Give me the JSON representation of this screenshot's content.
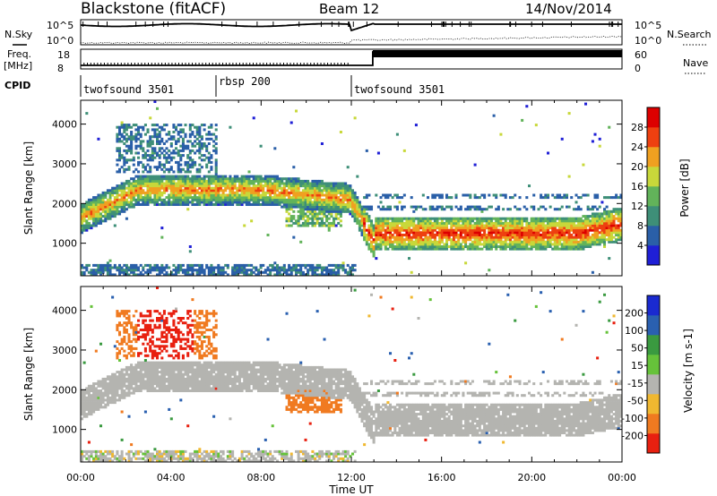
{
  "header": {
    "title": "Blackstone (fitACF)",
    "beam": "Beam 12",
    "date": "14/Nov/2014"
  },
  "summary": {
    "nsky_label": "N.Sky",
    "nsky_ticks": [
      "10^5",
      "10^0"
    ],
    "nsearch_label": "N.Search",
    "nsearch_ticks": [
      "10^5",
      "10^0"
    ],
    "freq_label": "Freq.",
    "freq_unit": "[MHz]",
    "freq_ticks": [
      "18",
      "8"
    ],
    "nave_label": "Nave",
    "nave_ticks": [
      "60",
      "0"
    ],
    "cpid_label": "CPID",
    "cpid_segments": [
      {
        "label": "twofsound 3501",
        "start": 0,
        "end": 6
      },
      {
        "label": "rbsp 200",
        "start": 6,
        "end": 12
      },
      {
        "label": "twofsound 3501",
        "start": 12,
        "end": 24
      }
    ]
  },
  "chart_data": [
    {
      "type": "heatmap",
      "parameter": "Power",
      "ylabel": "Slant Range [km]",
      "xlabel": "Time UT",
      "xlim": [
        0,
        24
      ],
      "ylim": [
        180,
        4600
      ],
      "x_ticks": [
        "00:00",
        "04:00",
        "08:00",
        "12:00",
        "16:00",
        "20:00",
        "00:00"
      ],
      "y_ticks": [
        "1000",
        "2000",
        "3000",
        "4000"
      ],
      "colorbar": {
        "label": "Power [dB]",
        "ticks": [
          "4",
          "8",
          "12",
          "16",
          "20",
          "24",
          "28"
        ],
        "range": [
          0,
          32
        ]
      },
      "features": [
        {
          "time_start": 0,
          "time_end": 12,
          "range_km": [
            1500,
            2500
          ],
          "typical_value": 20
        },
        {
          "time_start": 12.5,
          "time_end": 24,
          "range_km": [
            900,
            1800
          ],
          "typical_value": 24
        },
        {
          "time_start": 1.5,
          "time_end": 6,
          "range_km": [
            2800,
            4000
          ],
          "typical_value": 8
        },
        {
          "time_start": 0,
          "time_end": 12,
          "range_km": [
            200,
            450
          ],
          "typical_value": 6
        }
      ]
    },
    {
      "type": "heatmap",
      "parameter": "Velocity",
      "ylabel": "Slant Range [km]",
      "xlabel": "Time UT",
      "xlim": [
        0,
        24
      ],
      "ylim": [
        180,
        4600
      ],
      "x_ticks": [
        "00:00",
        "04:00",
        "08:00",
        "12:00",
        "16:00",
        "20:00",
        "00:00"
      ],
      "y_ticks": [
        "1000",
        "2000",
        "3000",
        "4000"
      ],
      "colorbar": {
        "label": "Velocity [m s-1]",
        "ticks": [
          "200",
          "100",
          "50",
          "15",
          "-15",
          "-50",
          "-100",
          "-200"
        ],
        "range": [
          -250,
          250
        ]
      },
      "features": [
        {
          "time_start": 0,
          "time_end": 12,
          "range_km": [
            1500,
            2500
          ],
          "typical_value": 0
        },
        {
          "time_start": 2.5,
          "time_end": 5,
          "range_km": [
            3000,
            4000
          ],
          "typical_value": -150
        },
        {
          "time_start": 9,
          "time_end": 11.5,
          "range_km": [
            1400,
            2000
          ],
          "typical_value": -60
        },
        {
          "time_start": 12.5,
          "time_end": 24,
          "range_km": [
            900,
            1800
          ],
          "typical_value": 0
        }
      ]
    }
  ],
  "colors": {
    "power_scale": [
      "#1f1fd6",
      "#2a5fa8",
      "#3e8f78",
      "#62b35a",
      "#c8d83a",
      "#f0a020",
      "#ee4010",
      "#dd0000"
    ],
    "velocity_scale": [
      "#1a2ad0",
      "#2a60b0",
      "#3a9a40",
      "#66c23a",
      "#b4b4b0",
      "#f0b830",
      "#f07a20",
      "#e82010"
    ]
  }
}
